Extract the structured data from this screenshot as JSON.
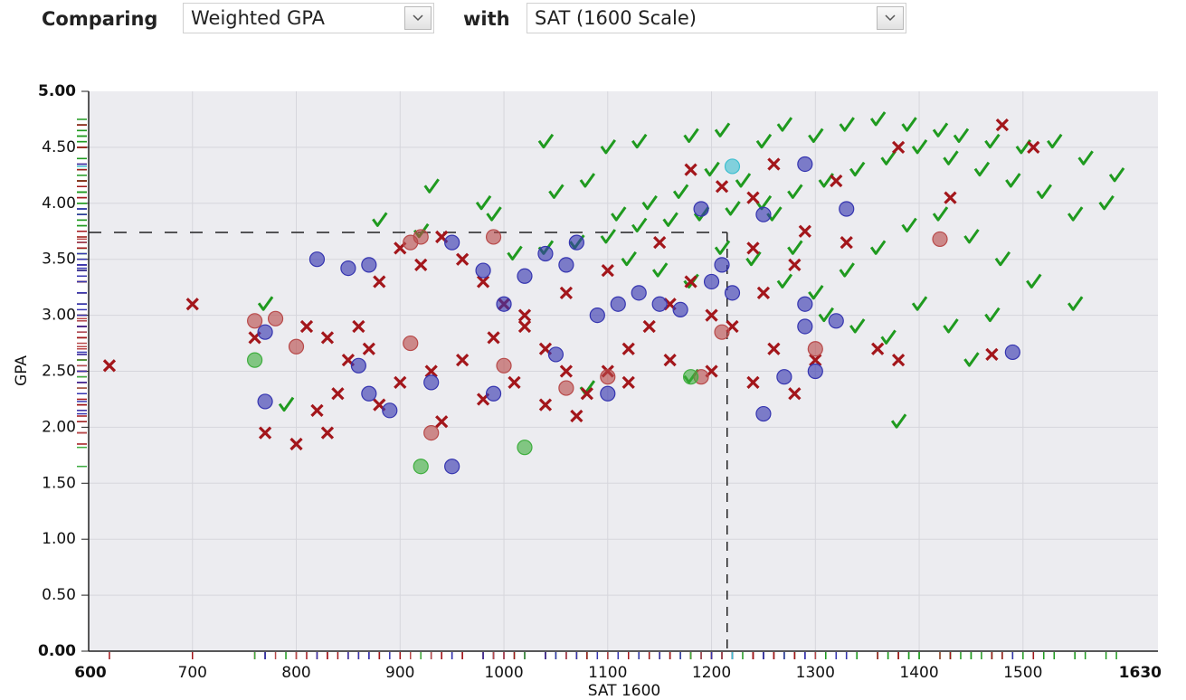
{
  "header": {
    "compare_label": "Comparing",
    "first_select": "Weighted GPA",
    "with_label": "with",
    "second_select": "SAT (1600 Scale)"
  },
  "chart_data": {
    "type": "scatter",
    "xlabel": "SAT 1600",
    "ylabel": "GPA",
    "xlim": [
      600,
      1630
    ],
    "ylim": [
      0,
      5
    ],
    "xticks": [
      600,
      700,
      800,
      900,
      1000,
      1100,
      1200,
      1300,
      1400,
      1500,
      1630
    ],
    "yticks": [
      {
        "value": 0,
        "label": "0.00"
      },
      {
        "value": 0.5,
        "label": "0.50"
      },
      {
        "value": 1,
        "label": "1.00"
      },
      {
        "value": 1.5,
        "label": "1.50"
      },
      {
        "value": 2,
        "label": "2.00"
      },
      {
        "value": 2.5,
        "label": "2.50"
      },
      {
        "value": 3,
        "label": "3.00"
      },
      {
        "value": 3.5,
        "label": "3.50"
      },
      {
        "value": 4,
        "label": "4.00"
      },
      {
        "value": 4.5,
        "label": "4.50"
      },
      {
        "value": 5,
        "label": "5.00"
      }
    ],
    "grid": true,
    "crosshair": {
      "x": 1215,
      "y": 3.74
    },
    "series": [
      {
        "symbol": "check",
        "color": "#1f9a1f",
        "x": [
          1040,
          1100,
          1130,
          1180,
          1210,
          1250,
          1270,
          1300,
          1330,
          1360,
          1390,
          1420,
          1440,
          1470,
          1500,
          1530,
          1560,
          1580,
          1550,
          1520,
          1490,
          1460,
          1430,
          1400,
          1370,
          1340,
          1310,
          1280,
          1250,
          1220,
          1190,
          1160,
          1130,
          1100,
          1070,
          1040,
          1010,
          990,
          980,
          930,
          880,
          920,
          1050,
          1080,
          1120,
          1150,
          1180,
          1210,
          1240,
          1270,
          1300,
          1330,
          1360,
          1390,
          1420,
          1450,
          1480,
          1510,
          1470,
          1430,
          1400,
          1370,
          1340,
          1310,
          1280,
          1260,
          1230,
          1200,
          1170,
          1140,
          1110,
          1380,
          1450,
          1080,
          1180,
          790,
          770,
          1550,
          1590
        ],
        "values": [
          4.55,
          4.5,
          4.55,
          4.6,
          4.65,
          4.55,
          4.7,
          4.6,
          4.7,
          4.75,
          4.7,
          4.65,
          4.6,
          4.55,
          4.5,
          4.55,
          4.4,
          4.0,
          3.9,
          4.1,
          4.2,
          4.3,
          4.4,
          4.5,
          4.4,
          4.3,
          4.2,
          4.1,
          4.0,
          3.95,
          3.9,
          3.85,
          3.8,
          3.7,
          3.65,
          3.6,
          3.55,
          3.9,
          4.0,
          4.15,
          3.85,
          3.75,
          4.1,
          4.2,
          3.5,
          3.4,
          3.3,
          3.6,
          3.5,
          3.3,
          3.2,
          3.4,
          3.6,
          3.8,
          3.9,
          3.7,
          3.5,
          3.3,
          3.0,
          2.9,
          3.1,
          2.8,
          2.9,
          3.0,
          3.6,
          3.9,
          4.2,
          4.3,
          4.1,
          4.0,
          3.9,
          2.05,
          2.6,
          2.35,
          2.45,
          2.2,
          3.1,
          3.1,
          4.25
        ]
      },
      {
        "symbol": "cross",
        "color": "#a3161b",
        "x": [
          620,
          700,
          770,
          800,
          830,
          760,
          820,
          840,
          860,
          880,
          900,
          920,
          940,
          960,
          980,
          1000,
          1020,
          1040,
          1060,
          1080,
          1100,
          1120,
          1140,
          1160,
          1180,
          1200,
          1220,
          1240,
          1260,
          1280,
          1300,
          1360,
          1380,
          1470,
          1480,
          1510,
          1430,
          1380,
          1320,
          1240,
          1210,
          1180,
          1260,
          1290,
          1240,
          1150,
          1100,
          1060,
          1020,
          990,
          960,
          930,
          900,
          880,
          870,
          850,
          830,
          810,
          940,
          980,
          1010,
          1040,
          1070,
          1120,
          1160,
          1200,
          1250,
          1280,
          1330
        ],
        "values": [
          2.55,
          3.1,
          1.95,
          1.85,
          1.95,
          2.8,
          2.15,
          2.3,
          2.9,
          3.3,
          3.6,
          3.45,
          3.7,
          3.5,
          3.3,
          3.1,
          2.9,
          2.7,
          2.5,
          2.3,
          2.5,
          2.7,
          2.9,
          3.1,
          3.3,
          3.0,
          2.9,
          2.4,
          2.7,
          2.3,
          2.6,
          2.7,
          2.6,
          2.65,
          4.7,
          4.5,
          4.05,
          4.5,
          4.2,
          4.05,
          4.15,
          4.3,
          4.35,
          3.75,
          3.6,
          3.65,
          3.4,
          3.2,
          3.0,
          2.8,
          2.6,
          2.5,
          2.4,
          2.2,
          2.7,
          2.6,
          2.8,
          2.9,
          2.05,
          2.25,
          2.4,
          2.2,
          2.1,
          2.4,
          2.6,
          2.5,
          3.2,
          3.45,
          3.65
        ]
      },
      {
        "symbol": "circle",
        "color": "#3535b0",
        "x": [
          770,
          770,
          820,
          850,
          870,
          860,
          870,
          890,
          950,
          930,
          950,
          980,
          1000,
          1020,
          1040,
          1060,
          1070,
          1090,
          1110,
          1130,
          1150,
          1170,
          1200,
          1210,
          1220,
          1190,
          1250,
          1250,
          1270,
          1290,
          1290,
          1290,
          1320,
          1330,
          1300,
          1490,
          1100,
          1050,
          990
        ],
        "values": [
          2.85,
          2.23,
          3.5,
          3.42,
          3.45,
          2.55,
          2.3,
          2.15,
          1.65,
          2.4,
          3.65,
          3.4,
          3.1,
          3.35,
          3.55,
          3.45,
          3.65,
          3.0,
          3.1,
          3.2,
          3.1,
          3.05,
          3.3,
          3.45,
          3.2,
          3.95,
          3.9,
          2.12,
          2.45,
          2.9,
          3.1,
          4.35,
          2.95,
          3.95,
          2.5,
          2.67,
          2.3,
          2.65,
          2.3
        ]
      },
      {
        "symbol": "circle",
        "color": "#b84a4a",
        "x": [
          760,
          780,
          800,
          910,
          920,
          930,
          910,
          990,
          1000,
          1060,
          1100,
          1190,
          1300,
          1420,
          1210
        ],
        "values": [
          2.95,
          2.97,
          2.72,
          3.65,
          3.7,
          1.95,
          2.75,
          3.7,
          2.55,
          2.35,
          2.45,
          2.45,
          2.7,
          3.68,
          2.85
        ]
      },
      {
        "symbol": "circle",
        "color": "#3fae3f",
        "x": [
          760,
          920,
          1020,
          1180
        ],
        "values": [
          2.6,
          1.65,
          1.82,
          2.45
        ]
      },
      {
        "symbol": "circle",
        "color": "#3fbfd0",
        "x": [
          1220
        ],
        "values": [
          4.33
        ]
      }
    ]
  }
}
